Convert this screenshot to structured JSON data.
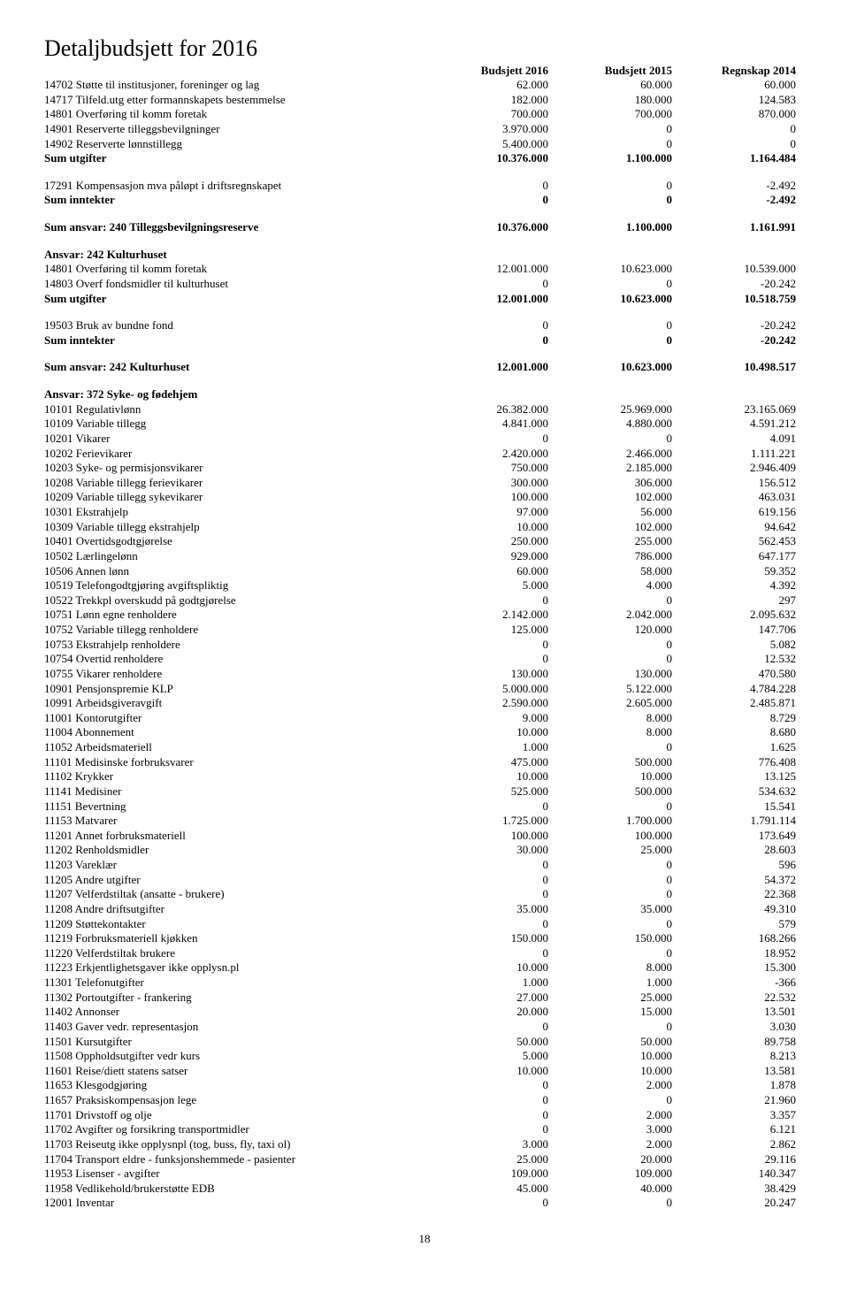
{
  "title": "Detaljbudsjett for 2016",
  "columns": [
    "Budsjett 2016",
    "Budsjett 2015",
    "Regnskap 2014"
  ],
  "pageNumber": "18",
  "lines": [
    {
      "label": "14702 Støtte til institusjoner, foreninger og lag",
      "c1": "62.000",
      "c2": "60.000",
      "c3": "60.000"
    },
    {
      "label": "14717 Tilfeld.utg etter formannskapets bestemmelse",
      "c1": "182.000",
      "c2": "180.000",
      "c3": "124.583"
    },
    {
      "label": "14801 Overføring til komm foretak",
      "c1": "700.000",
      "c2": "700.000",
      "c3": "870.000"
    },
    {
      "label": "14901 Reserverte tilleggsbevilgninger",
      "c1": "3.970.000",
      "c2": "0",
      "c3": "0"
    },
    {
      "label": "14902 Reserverte lønnstillegg",
      "c1": "5.400.000",
      "c2": "0",
      "c3": "0"
    },
    {
      "label": "Sum utgifter",
      "c1": "10.376.000",
      "c2": "1.100.000",
      "c3": "1.164.484",
      "bold": true
    },
    {
      "gap": "section"
    },
    {
      "label": "17291 Kompensasjon mva påløpt i driftsregnskapet",
      "c1": "0",
      "c2": "0",
      "c3": "-2.492"
    },
    {
      "label": "Sum inntekter",
      "c1": "0",
      "c2": "0",
      "c3": "-2.492",
      "bold": true
    },
    {
      "gap": "section"
    },
    {
      "label": "Sum ansvar: 240 Tilleggsbevilgningsreserve",
      "c1": "10.376.000",
      "c2": "1.100.000",
      "c3": "1.161.991",
      "bold": true
    },
    {
      "gap": "section"
    },
    {
      "label": "Ansvar: 242 Kulturhuset",
      "bold": true,
      "labelOnly": true
    },
    {
      "label": "14801 Overføring til komm foretak",
      "c1": "12.001.000",
      "c2": "10.623.000",
      "c3": "10.539.000"
    },
    {
      "label": "14803 Overf fondsmidler til kulturhuset",
      "c1": "0",
      "c2": "0",
      "c3": "-20.242"
    },
    {
      "label": "Sum utgifter",
      "c1": "12.001.000",
      "c2": "10.623.000",
      "c3": "10.518.759",
      "bold": true
    },
    {
      "gap": "section"
    },
    {
      "label": "19503 Bruk av bundne fond",
      "c1": "0",
      "c2": "0",
      "c3": "-20.242"
    },
    {
      "label": "Sum inntekter",
      "c1": "0",
      "c2": "0",
      "c3": "-20.242",
      "bold": true
    },
    {
      "gap": "section"
    },
    {
      "label": "Sum ansvar: 242 Kulturhuset",
      "c1": "12.001.000",
      "c2": "10.623.000",
      "c3": "10.498.517",
      "bold": true
    },
    {
      "gap": "section"
    },
    {
      "label": "Ansvar: 372 Syke- og fødehjem",
      "bold": true,
      "labelOnly": true
    },
    {
      "label": "10101 Regulativlønn",
      "c1": "26.382.000",
      "c2": "25.969.000",
      "c3": "23.165.069"
    },
    {
      "label": "10109 Variable tillegg",
      "c1": "4.841.000",
      "c2": "4.880.000",
      "c3": "4.591.212"
    },
    {
      "label": "10201 Vikarer",
      "c1": "0",
      "c2": "0",
      "c3": "4.091"
    },
    {
      "label": "10202 Ferievikarer",
      "c1": "2.420.000",
      "c2": "2.466.000",
      "c3": "1.111.221"
    },
    {
      "label": "10203 Syke- og permisjonsvikarer",
      "c1": "750.000",
      "c2": "2.185.000",
      "c3": "2.946.409"
    },
    {
      "label": "10208 Variable tillegg ferievikarer",
      "c1": "300.000",
      "c2": "306.000",
      "c3": "156.512"
    },
    {
      "label": "10209 Variable tillegg sykevikarer",
      "c1": "100.000",
      "c2": "102.000",
      "c3": "463.031"
    },
    {
      "label": "10301 Ekstrahjelp",
      "c1": "97.000",
      "c2": "56.000",
      "c3": "619.156"
    },
    {
      "label": "10309 Variable tillegg ekstrahjelp",
      "c1": "10.000",
      "c2": "102.000",
      "c3": "94.642"
    },
    {
      "label": "10401 Overtidsgodtgjørelse",
      "c1": "250.000",
      "c2": "255.000",
      "c3": "562.453"
    },
    {
      "label": "10502 Lærlingelønn",
      "c1": "929.000",
      "c2": "786.000",
      "c3": "647.177"
    },
    {
      "label": "10506 Annen lønn",
      "c1": "60.000",
      "c2": "58.000",
      "c3": "59.352"
    },
    {
      "label": "10519 Telefongodtgjøring avgiftspliktig",
      "c1": "5.000",
      "c2": "4.000",
      "c3": "4.392"
    },
    {
      "label": "10522 Trekkpl overskudd på godtgjørelse",
      "c1": "0",
      "c2": "0",
      "c3": "297"
    },
    {
      "label": "10751 Lønn egne renholdere",
      "c1": "2.142.000",
      "c2": "2.042.000",
      "c3": "2.095.632"
    },
    {
      "label": "10752 Variable tillegg renholdere",
      "c1": "125.000",
      "c2": "120.000",
      "c3": "147.706"
    },
    {
      "label": "10753 Ekstrahjelp renholdere",
      "c1": "0",
      "c2": "0",
      "c3": "5.082"
    },
    {
      "label": "10754 Overtid renholdere",
      "c1": "0",
      "c2": "0",
      "c3": "12.532"
    },
    {
      "label": "10755 Vikarer renholdere",
      "c1": "130.000",
      "c2": "130.000",
      "c3": "470.580"
    },
    {
      "label": "10901 Pensjonspremie KLP",
      "c1": "5.000.000",
      "c2": "5.122.000",
      "c3": "4.784.228"
    },
    {
      "label": "10991 Arbeidsgiveravgift",
      "c1": "2.590.000",
      "c2": "2.605.000",
      "c3": "2.485.871"
    },
    {
      "label": "11001 Kontorutgifter",
      "c1": "9.000",
      "c2": "8.000",
      "c3": "8.729"
    },
    {
      "label": "11004 Abonnement",
      "c1": "10.000",
      "c2": "8.000",
      "c3": "8.680"
    },
    {
      "label": "11052 Arbeidsmateriell",
      "c1": "1.000",
      "c2": "0",
      "c3": "1.625"
    },
    {
      "label": "11101 Medisinske forbruksvarer",
      "c1": "475.000",
      "c2": "500.000",
      "c3": "776.408"
    },
    {
      "label": "11102 Krykker",
      "c1": "10.000",
      "c2": "10.000",
      "c3": "13.125"
    },
    {
      "label": "11141 Medisiner",
      "c1": "525.000",
      "c2": "500.000",
      "c3": "534.632"
    },
    {
      "label": "11151 Bevertning",
      "c1": "0",
      "c2": "0",
      "c3": "15.541"
    },
    {
      "label": "11153 Matvarer",
      "c1": "1.725.000",
      "c2": "1.700.000",
      "c3": "1.791.114"
    },
    {
      "label": "11201 Annet forbruksmateriell",
      "c1": "100.000",
      "c2": "100.000",
      "c3": "173.649"
    },
    {
      "label": "11202 Renholdsmidler",
      "c1": "30.000",
      "c2": "25.000",
      "c3": "28.603"
    },
    {
      "label": "11203 Vareklær",
      "c1": "0",
      "c2": "0",
      "c3": "596"
    },
    {
      "label": "11205 Andre utgifter",
      "c1": "0",
      "c2": "0",
      "c3": "54.372"
    },
    {
      "label": "11207 Velferdstiltak (ansatte - brukere)",
      "c1": "0",
      "c2": "0",
      "c3": "22.368"
    },
    {
      "label": "11208 Andre driftsutgifter",
      "c1": "35.000",
      "c2": "35.000",
      "c3": "49.310"
    },
    {
      "label": "11209 Støttekontakter",
      "c1": "0",
      "c2": "0",
      "c3": "579"
    },
    {
      "label": "11219 Forbruksmateriell kjøkken",
      "c1": "150.000",
      "c2": "150.000",
      "c3": "168.266"
    },
    {
      "label": "11220 Velferdstiltak brukere",
      "c1": "0",
      "c2": "0",
      "c3": "18.952"
    },
    {
      "label": "11223 Erkjentlighetsgaver ikke opplysn.pl",
      "c1": "10.000",
      "c2": "8.000",
      "c3": "15.300"
    },
    {
      "label": "11301 Telefonutgifter",
      "c1": "1.000",
      "c2": "1.000",
      "c3": "-366"
    },
    {
      "label": "11302 Portoutgifter - frankering",
      "c1": "27.000",
      "c2": "25.000",
      "c3": "22.532"
    },
    {
      "label": "11402 Annonser",
      "c1": "20.000",
      "c2": "15.000",
      "c3": "13.501"
    },
    {
      "label": "11403 Gaver vedr. representasjon",
      "c1": "0",
      "c2": "0",
      "c3": "3.030"
    },
    {
      "label": "11501 Kursutgifter",
      "c1": "50.000",
      "c2": "50.000",
      "c3": "89.758"
    },
    {
      "label": "11508 Oppholdsutgifter vedr kurs",
      "c1": "5.000",
      "c2": "10.000",
      "c3": "8.213"
    },
    {
      "label": "11601 Reise/diett statens satser",
      "c1": "10.000",
      "c2": "10.000",
      "c3": "13.581"
    },
    {
      "label": "11653 Klesgodgjøring",
      "c1": "0",
      "c2": "2.000",
      "c3": "1.878"
    },
    {
      "label": "11657 Praksiskompensasjon lege",
      "c1": "0",
      "c2": "0",
      "c3": "21.960"
    },
    {
      "label": "11701 Drivstoff og olje",
      "c1": "0",
      "c2": "2.000",
      "c3": "3.357"
    },
    {
      "label": "11702 Avgifter og forsikring transportmidler",
      "c1": "0",
      "c2": "3.000",
      "c3": "6.121"
    },
    {
      "label": "11703 Reiseutg ikke opplysnpl (tog, buss, fly, taxi  ol)",
      "c1": "3.000",
      "c2": "2.000",
      "c3": "2.862"
    },
    {
      "label": "11704 Transport eldre - funksjonshemmede - pasienter",
      "c1": "25.000",
      "c2": "20.000",
      "c3": "29.116"
    },
    {
      "label": "11953 Lisenser - avgifter",
      "c1": "109.000",
      "c2": "109.000",
      "c3": "140.347"
    },
    {
      "label": "11958 Vedlikehold/brukerstøtte EDB",
      "c1": "45.000",
      "c2": "40.000",
      "c3": "38.429"
    },
    {
      "label": "12001 Inventar",
      "c1": "0",
      "c2": "0",
      "c3": "20.247"
    }
  ]
}
